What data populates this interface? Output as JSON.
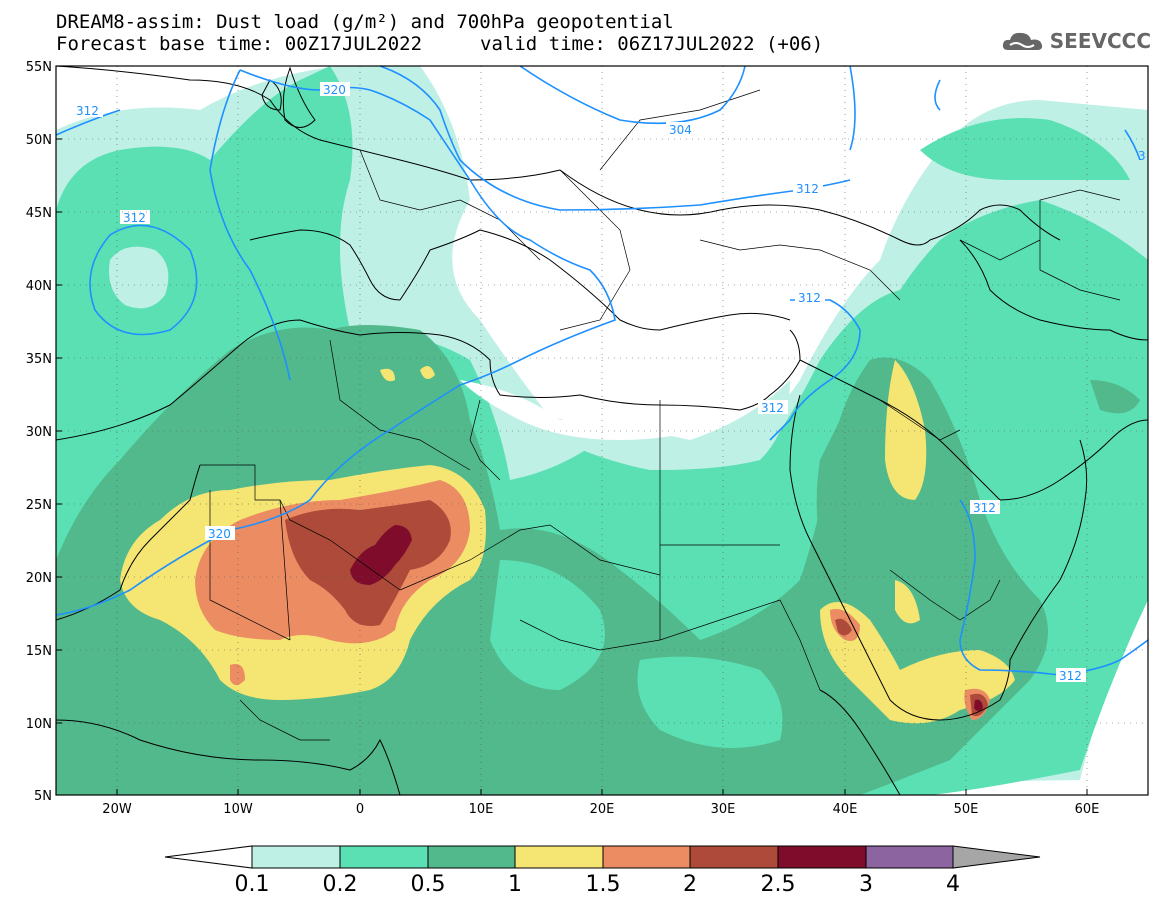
{
  "title": {
    "line1": "DREAM8-assim: Dust load (g/m²) and 700hPa geopotential",
    "line2_left": "Forecast base time: 00Z17JUL2022",
    "line2_right": "valid time: 06Z17JUL2022 (+06)"
  },
  "logo": {
    "text": "SEEVCCC",
    "icon": "cloud-icon"
  },
  "map": {
    "lat_labels": [
      "55N",
      "50N",
      "45N",
      "40N",
      "35N",
      "30N",
      "25N",
      "20N",
      "15N",
      "10N",
      "5N"
    ],
    "lon_labels": [
      "20W",
      "10W",
      "0",
      "10E",
      "20E",
      "30E",
      "40E",
      "50E",
      "60E"
    ],
    "contour_labels": [
      "312",
      "320",
      "304",
      "312",
      "312",
      "312",
      "312",
      "312",
      "320",
      "312",
      "3"
    ]
  },
  "colorbar": {
    "labels": [
      "0.1",
      "0.2",
      "0.5",
      "1",
      "1.5",
      "2",
      "2.5",
      "3",
      "4"
    ],
    "colors": [
      "#ffffff",
      "#bff0e6",
      "#5be0b4",
      "#52b98d",
      "#f5e573",
      "#eb8c63",
      "#ad4a39",
      "#800c2b",
      "#8c64a0",
      "#a6a6a6"
    ]
  },
  "colors": {
    "dust_01": "#bff0e6",
    "dust_02": "#5be0b4",
    "dust_05": "#52b98d",
    "dust_1": "#f5e573",
    "dust_15": "#eb8c63",
    "dust_2": "#ad4a39",
    "dust_25": "#800c2b",
    "contour": "#1e90ff"
  }
}
